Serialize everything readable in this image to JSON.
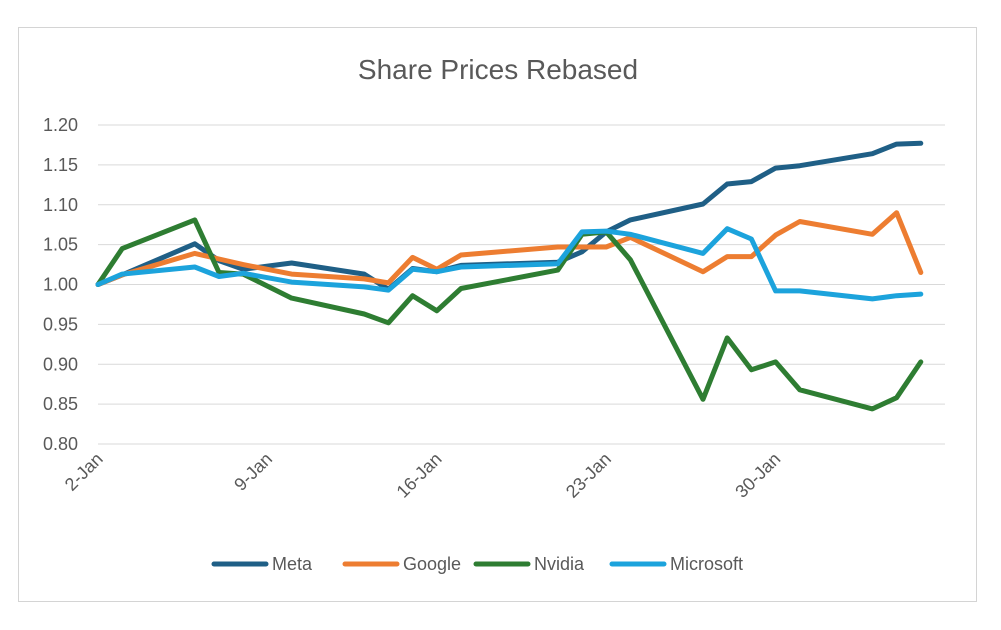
{
  "chart_data": {
    "type": "line",
    "title": "Share Prices Rebased",
    "xlabel": "",
    "ylabel": "",
    "ylim": [
      0.8,
      1.2
    ],
    "y_ticks": [
      1.2,
      1.15,
      1.1,
      1.05,
      1.0,
      0.95,
      0.9,
      0.85,
      0.8
    ],
    "y_tick_labels": [
      "1.20",
      "1.15",
      "1.10",
      "1.05",
      "1.00",
      "0.95",
      "0.90",
      "0.85",
      "0.80"
    ],
    "x_range": [
      2,
      37
    ],
    "x_ticks": [
      {
        "day": 2,
        "label": "2-Jan"
      },
      {
        "day": 9,
        "label": "9-Jan"
      },
      {
        "day": 16,
        "label": "16-Jan"
      },
      {
        "day": 23,
        "label": "23-Jan"
      },
      {
        "day": 30,
        "label": "30-Jan"
      }
    ],
    "x": [
      2,
      3,
      6,
      7,
      8,
      10,
      13,
      14,
      15,
      16,
      17,
      21,
      22,
      23,
      24,
      27,
      28,
      29,
      30,
      31,
      34,
      35,
      36
    ],
    "series": [
      {
        "name": "Meta",
        "color": "#1f5f86",
        "values": [
          1.0,
          1.012,
          1.051,
          1.03,
          1.019,
          1.027,
          1.013,
          0.994,
          1.02,
          1.016,
          1.024,
          1.028,
          1.041,
          1.066,
          1.081,
          1.101,
          1.126,
          1.129,
          1.146,
          1.149,
          1.164,
          1.176,
          1.177
        ]
      },
      {
        "name": "Google",
        "color": "#ed7d31",
        "values": [
          1.0,
          1.012,
          1.039,
          1.032,
          1.025,
          1.013,
          1.007,
          1.002,
          1.034,
          1.019,
          1.037,
          1.047,
          1.047,
          1.047,
          1.059,
          1.016,
          1.035,
          1.035,
          1.062,
          1.079,
          1.063,
          1.09,
          1.015
        ]
      },
      {
        "name": "Nvidia",
        "color": "#2e7d32",
        "values": [
          1.0,
          1.045,
          1.081,
          1.015,
          1.013,
          0.983,
          0.963,
          0.952,
          0.986,
          0.967,
          0.995,
          1.018,
          1.063,
          1.066,
          1.031,
          0.856,
          0.933,
          0.893,
          0.903,
          0.868,
          0.844,
          0.858,
          0.903
        ]
      },
      {
        "name": "Microsoft",
        "color": "#1ca3dc",
        "values": [
          1.0,
          1.013,
          1.022,
          1.01,
          1.014,
          1.003,
          0.997,
          0.993,
          1.019,
          1.016,
          1.022,
          1.026,
          1.066,
          1.067,
          1.063,
          1.039,
          1.07,
          1.057,
          0.992,
          0.992,
          0.982,
          0.986,
          0.988
        ]
      }
    ],
    "legend_position": "bottom",
    "grid": true
  }
}
